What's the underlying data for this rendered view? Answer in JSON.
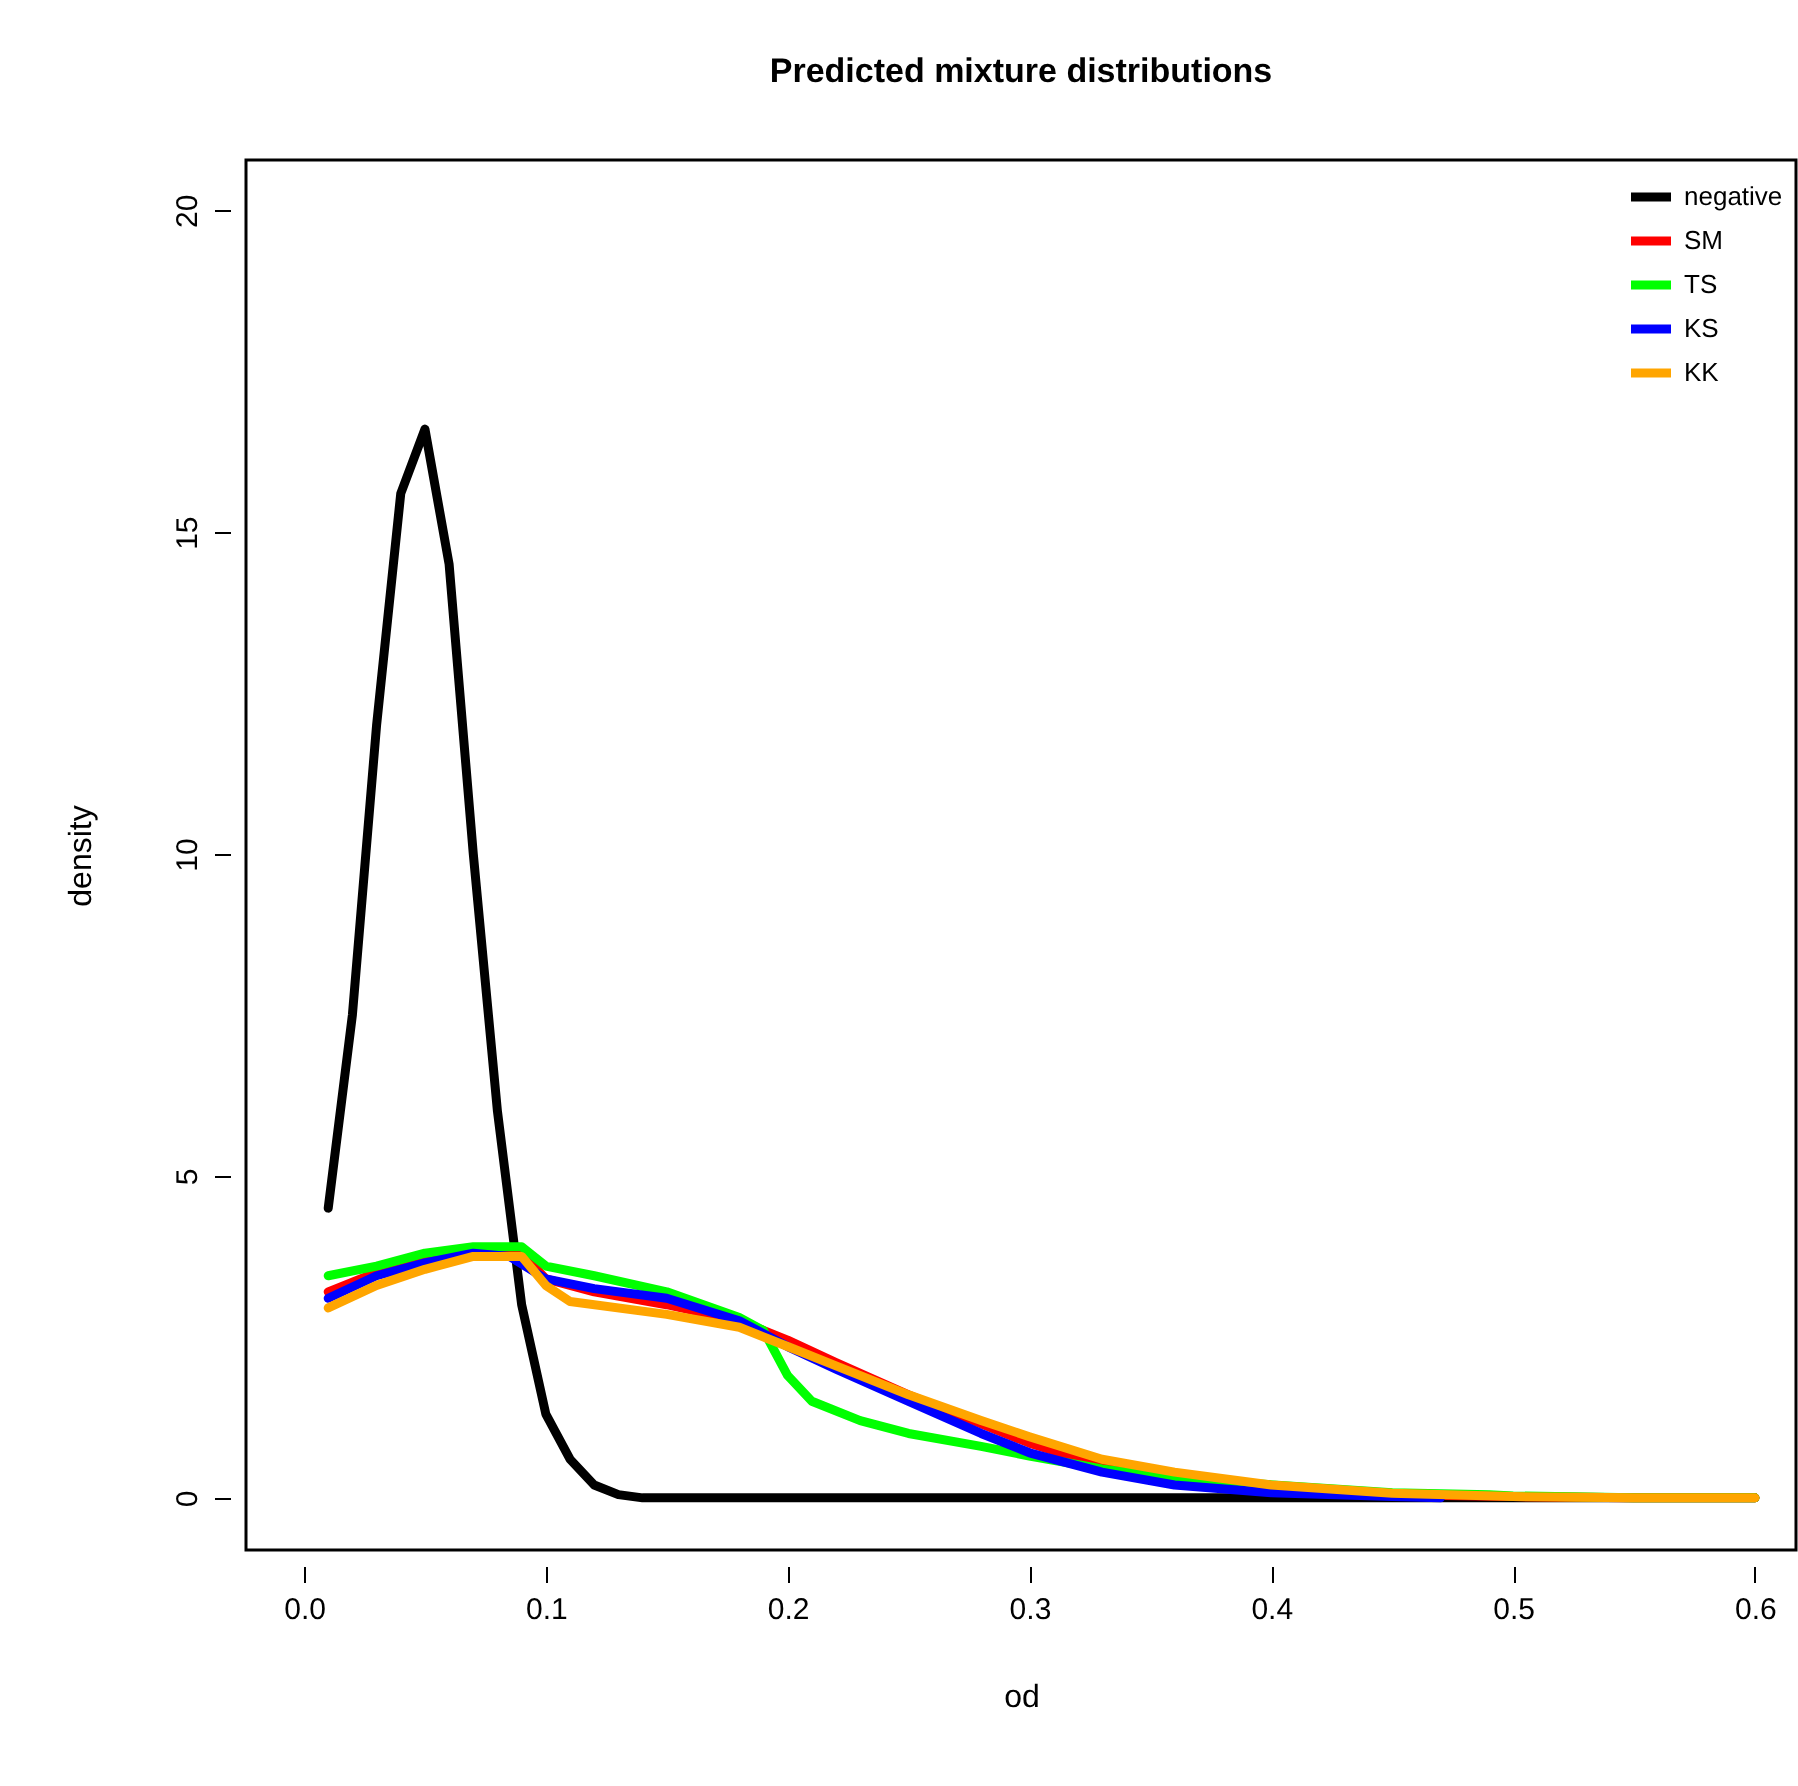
{
  "chart_data": {
    "type": "line",
    "title": "Predicted mixture distributions",
    "xlabel": "od",
    "ylabel": "density",
    "xlim": [
      -0.024,
      0.617
    ],
    "ylim": [
      -0.81,
      20.78
    ],
    "xticks": [
      {
        "value": 0,
        "label": "0.0"
      },
      0.1,
      0.2,
      0.3,
      0.4,
      0.5,
      0.6
    ],
    "yticks": [
      0,
      5,
      10,
      15,
      20
    ],
    "grid": false,
    "legend": "top right",
    "marker": "none",
    "line_style": "solid",
    "series": [
      {
        "name": "negative",
        "color": "#000000",
        "x": [
          0.01,
          0.02,
          0.03,
          0.04,
          0.05,
          0.06,
          0.07,
          0.08,
          0.09,
          0.1,
          0.11,
          0.12,
          0.13,
          0.14,
          0.2,
          0.3,
          0.4,
          0.5,
          0.6
        ],
        "values": [
          4.5,
          7.5,
          12,
          15.6,
          16.6,
          14.5,
          10,
          6,
          3,
          1.3,
          0.6,
          0.2,
          0.05,
          0,
          0,
          0,
          0,
          0,
          0
        ]
      },
      {
        "name": "SM",
        "color": "#ff0000",
        "x": [
          0.01,
          0.03,
          0.05,
          0.07,
          0.09,
          0.1,
          0.12,
          0.15,
          0.18,
          0.2,
          0.22,
          0.25,
          0.28,
          0.3,
          0.33,
          0.4,
          0.42,
          0.45,
          0.5,
          0.55,
          0.6
        ],
        "values": [
          3.2,
          3.5,
          3.7,
          3.85,
          3.8,
          3.4,
          3.2,
          3.0,
          2.75,
          2.45,
          2.1,
          1.6,
          1.15,
          0.85,
          0.5,
          0.17,
          0.1,
          0.05,
          0.02,
          0,
          0
        ]
      },
      {
        "name": "TS",
        "color": "#00ff00",
        "x": [
          0.01,
          0.03,
          0.05,
          0.07,
          0.09,
          0.1,
          0.12,
          0.15,
          0.18,
          0.19,
          0.2,
          0.21,
          0.23,
          0.25,
          0.28,
          0.3,
          0.33,
          0.36,
          0.45,
          0.49,
          0.5,
          0.55,
          0.6
        ],
        "values": [
          3.45,
          3.6,
          3.8,
          3.9,
          3.9,
          3.6,
          3.45,
          3.2,
          2.8,
          2.6,
          1.9,
          1.5,
          1.2,
          1.0,
          0.8,
          0.65,
          0.45,
          0.3,
          0.08,
          0.05,
          0.03,
          0,
          0
        ]
      },
      {
        "name": "KS",
        "color": "#0000ff",
        "x": [
          0.01,
          0.03,
          0.05,
          0.07,
          0.085,
          0.1,
          0.12,
          0.15,
          0.18,
          0.2,
          0.22,
          0.25,
          0.28,
          0.3,
          0.33,
          0.36,
          0.4,
          0.45,
          0.47
        ],
        "values": [
          3.1,
          3.45,
          3.65,
          3.8,
          3.75,
          3.4,
          3.25,
          3.1,
          2.75,
          2.35,
          2.0,
          1.5,
          1.0,
          0.7,
          0.4,
          0.2,
          0.08,
          0.02,
          0
        ]
      },
      {
        "name": "KK",
        "color": "#ffa500",
        "x": [
          0.01,
          0.03,
          0.05,
          0.07,
          0.09,
          0.1,
          0.11,
          0.15,
          0.18,
          0.2,
          0.22,
          0.25,
          0.28,
          0.3,
          0.33,
          0.36,
          0.4,
          0.45,
          0.5,
          0.55,
          0.6
        ],
        "values": [
          2.95,
          3.3,
          3.55,
          3.75,
          3.75,
          3.3,
          3.05,
          2.85,
          2.65,
          2.35,
          2.05,
          1.6,
          1.2,
          0.95,
          0.6,
          0.4,
          0.2,
          0.07,
          0.02,
          0,
          0
        ]
      }
    ]
  }
}
